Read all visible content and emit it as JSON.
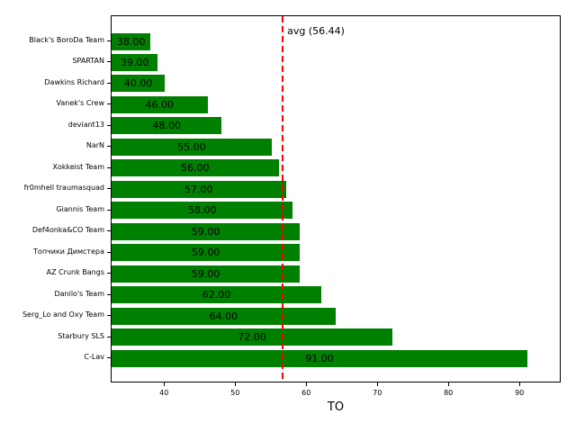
{
  "chart_data": {
    "type": "bar",
    "orientation": "horizontal",
    "title": "",
    "xlabel": "TO",
    "categories": [
      "Black's BoroDa Team",
      "SPARTAN",
      "Dawkins Richard",
      "Vanek's Crew",
      "deviant13",
      "NarN",
      "Xokkeist Team",
      "fr0mhell traumasquad",
      "Giannis Team",
      "Def4onka&CO Team",
      "Топчики Димстера",
      "AZ Crunk Bangs",
      "Danilo's Team",
      "Serg_Lo and Oxy Team",
      "Starbury SLS",
      "C-Lav"
    ],
    "values": [
      38,
      39,
      40,
      46,
      48,
      55,
      56,
      57,
      58,
      59,
      59,
      59,
      62,
      64,
      72,
      91
    ],
    "value_labels": [
      "38.00",
      "39.00",
      "40.00",
      "46.00",
      "48.00",
      "55.00",
      "56.00",
      "57.00",
      "58.00",
      "59.00",
      "59.00",
      "59.00",
      "62.00",
      "64.00",
      "72.00",
      "91.00"
    ],
    "bar_color": "#008000",
    "text_color": "#000000",
    "xlim": [
      32.5,
      95.8
    ],
    "xticks": [
      40,
      50,
      60,
      70,
      80,
      90
    ],
    "grid": false,
    "legend": null,
    "avg_line": {
      "value": 56.44,
      "label": "avg (56.44)",
      "color": "#ff0000",
      "style": "dashed"
    }
  }
}
